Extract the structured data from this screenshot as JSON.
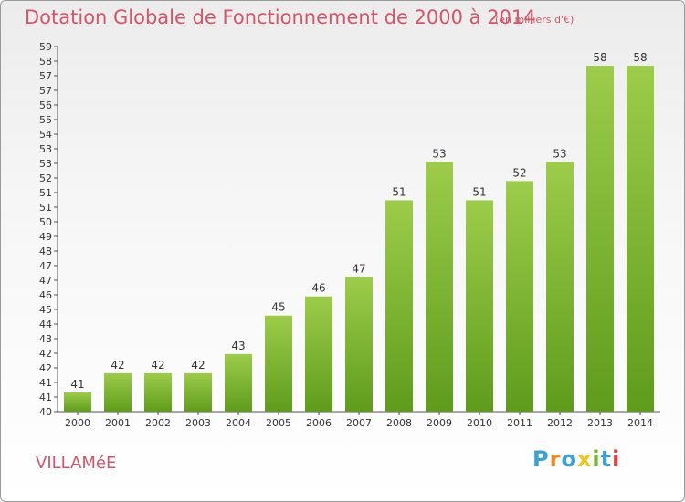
{
  "title": "Dotation Globale de Fonctionnement de 2000 à 2014",
  "subtitle": "(en milliers d'€)",
  "commune": "VILLAMéE",
  "logo": {
    "letters": [
      "P",
      "r",
      "o",
      "x",
      "i",
      "t",
      "i"
    ],
    "colors": [
      "#3aa0d8",
      "#f08a24",
      "#3aa0d8",
      "#e9c620",
      "#7ab534",
      "#3aa0d8",
      "#e0404a"
    ]
  },
  "colors": {
    "bar_top": "#9ccc4a",
    "bar_bottom": "#5f9c1c",
    "title": "#d2566a",
    "text": "#333333"
  },
  "chart_data": {
    "type": "bar",
    "categories": [
      "2000",
      "2001",
      "2002",
      "2003",
      "2004",
      "2005",
      "2006",
      "2007",
      "2008",
      "2009",
      "2010",
      "2011",
      "2012",
      "2013",
      "2014"
    ],
    "values": [
      41,
      42,
      42,
      42,
      43,
      45,
      46,
      47,
      51,
      53,
      51,
      52,
      53,
      58,
      58
    ],
    "ylim": [
      40,
      59
    ],
    "yticks": [
      "40",
      "41",
      "41",
      "42",
      "42",
      "43",
      "44",
      "45",
      "46",
      "47",
      "47",
      "48",
      "49",
      "50",
      "51",
      "51",
      "52",
      "53",
      "53",
      "54",
      "55",
      "56",
      "57",
      "57",
      "58",
      "59"
    ],
    "grid": false,
    "title": "Dotation Globale de Fonctionnement de 2000 à 2014"
  }
}
